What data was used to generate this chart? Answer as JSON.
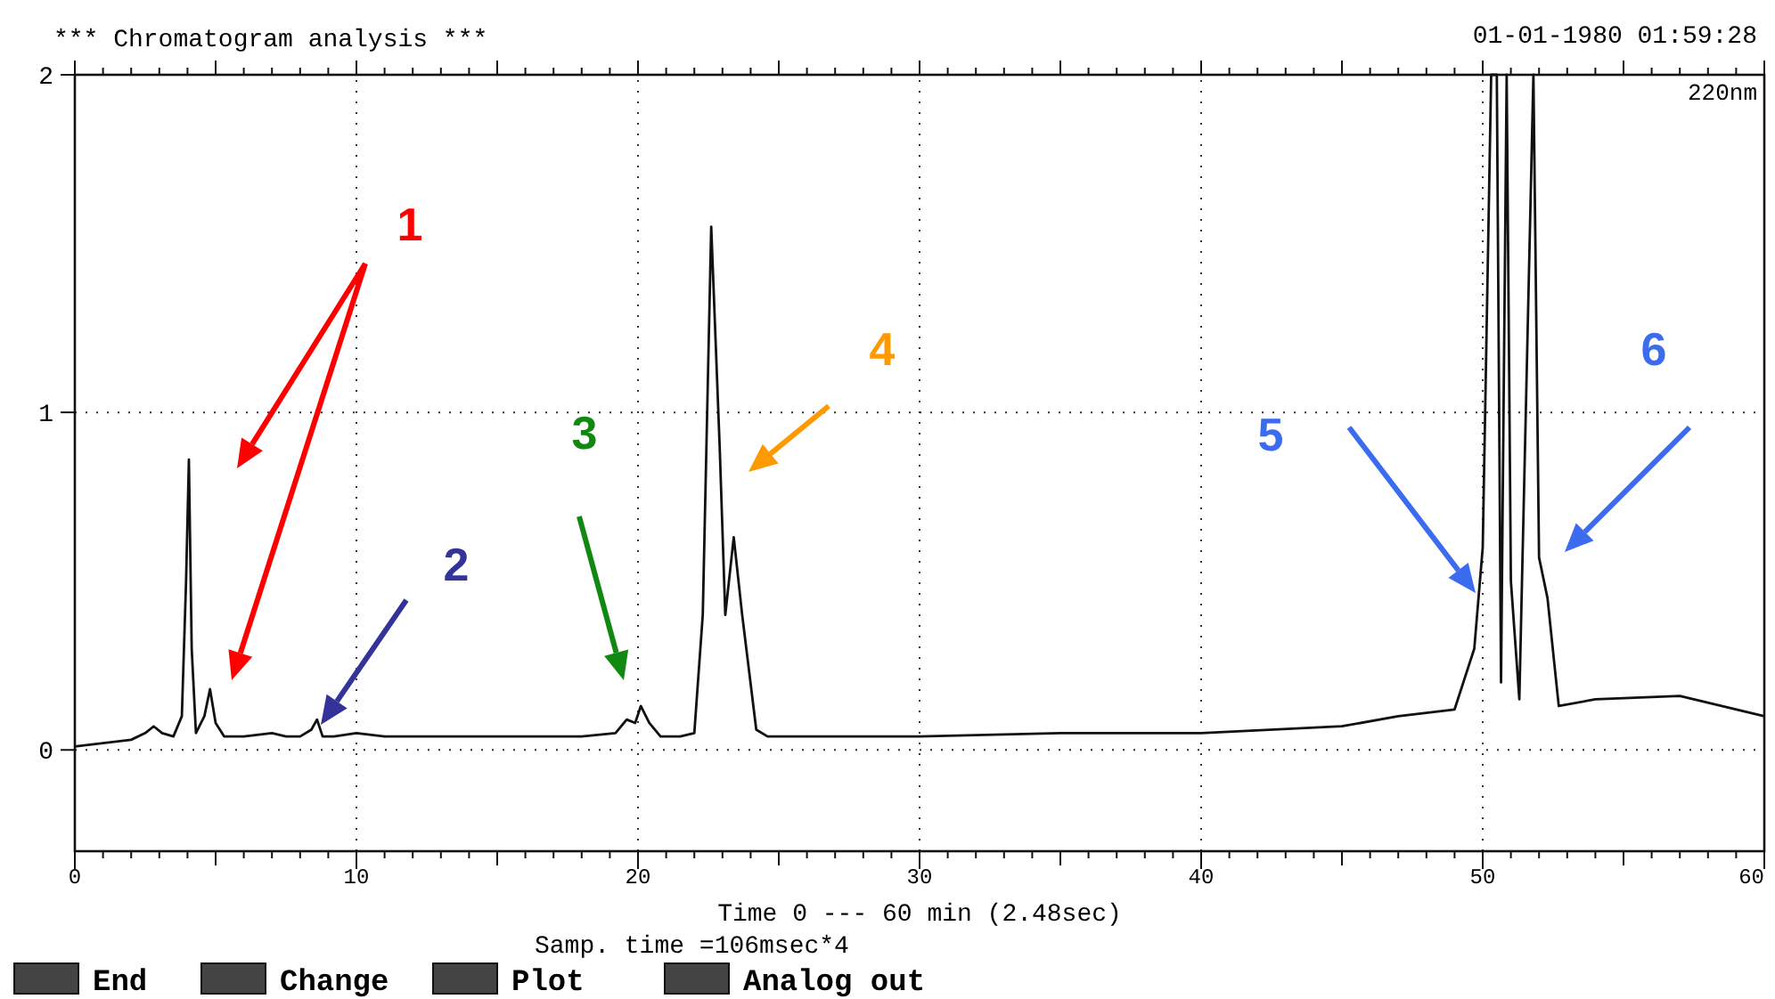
{
  "chart_data": {
    "type": "line",
    "title": "***   Chromatogram  analysis  ***",
    "subtitle": "01-01-1980  01:59:28",
    "xlabel": "Time  0 --- 60 min  (2.48sec)",
    "x": [
      0,
      1,
      2,
      2.5,
      2.8,
      3.1,
      3.5,
      3.8,
      3.95,
      4.05,
      4.15,
      4.3,
      4.6,
      4.8,
      5.0,
      5.3,
      6,
      7,
      7.5,
      8,
      8.4,
      8.6,
      8.8,
      9.2,
      10,
      11,
      12,
      14,
      16,
      18,
      19.2,
      19.6,
      19.9,
      20.1,
      20.4,
      20.8,
      21.5,
      22,
      22.3,
      22.6,
      22.9,
      23.1,
      23.4,
      23.7,
      24.2,
      24.6,
      26,
      30,
      35,
      40,
      45,
      47,
      49,
      49.7,
      50.0,
      50.3,
      50.5,
      50.65,
      50.85,
      51.0,
      51.3,
      51.8,
      52.0,
      52.3,
      52.7,
      54,
      57,
      60
    ],
    "series": [
      {
        "color": "#111111",
        "values": [
          0.01,
          0.02,
          0.03,
          0.05,
          0.07,
          0.05,
          0.04,
          0.1,
          0.5,
          0.86,
          0.3,
          0.05,
          0.1,
          0.18,
          0.08,
          0.04,
          0.04,
          0.05,
          0.04,
          0.04,
          0.06,
          0.09,
          0.04,
          0.04,
          0.05,
          0.04,
          0.04,
          0.04,
          0.04,
          0.04,
          0.05,
          0.09,
          0.08,
          0.13,
          0.08,
          0.04,
          0.04,
          0.05,
          0.4,
          1.55,
          0.9,
          0.4,
          0.63,
          0.4,
          0.06,
          0.04,
          0.04,
          0.04,
          0.05,
          0.05,
          0.07,
          0.1,
          0.12,
          0.3,
          0.6,
          2,
          2,
          0.2,
          2,
          0.5,
          0.15,
          2,
          0.57,
          0.45,
          0.13,
          0.15,
          0.16,
          0.1
        ]
      }
    ],
    "xlim": [
      0,
      60
    ],
    "xticks": [
      0,
      10,
      20,
      30,
      40,
      50,
      60
    ],
    "ylim": [
      -0.3,
      2
    ],
    "yticks": [
      0,
      1,
      2
    ],
    "grid": true,
    "line_style": "solid",
    "marker": "none",
    "annotations": [
      "1",
      "2",
      "3",
      "4",
      "5",
      "6",
      "220nm",
      "Samp. time =106msec*4",
      "End",
      "Change",
      "Plot",
      "Analog out"
    ]
  }
}
